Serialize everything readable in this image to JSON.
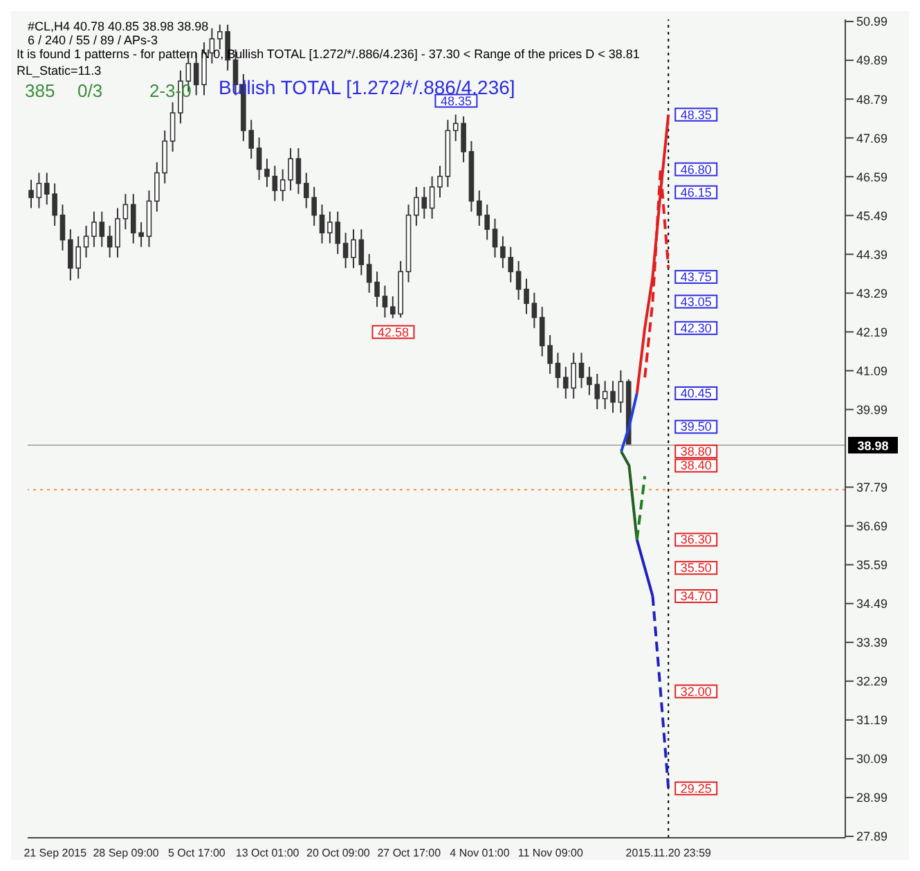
{
  "chart_data": {
    "type": "candlestick",
    "title": "#CL,H4  40.78 40.85 38.98 38.98",
    "subtitle": "6 / 240 / 55 / 89 / APs-3",
    "color": "#333333",
    "categories": [
      null,
      null,
      null,
      "21 Sep 2015",
      null,
      null,
      null,
      null,
      null,
      null,
      null,
      null,
      "28 Sep 09:00",
      null,
      null,
      null,
      null,
      null,
      null,
      null,
      null,
      "5 Oct 17:00",
      null,
      null,
      null,
      null,
      null,
      null,
      null,
      null,
      "13 Oct 01:00",
      null,
      null,
      null,
      null,
      null,
      null,
      null,
      null,
      "20 Oct 09:00",
      null,
      null,
      null,
      null,
      null,
      null,
      null,
      null,
      "27 Oct 17:00",
      null,
      null,
      null,
      null,
      null,
      null,
      null,
      null,
      "4 Nov 01:00",
      null,
      null,
      null,
      null,
      null,
      null,
      null,
      null,
      "11 Nov 09:00",
      null,
      null,
      null,
      null,
      null,
      null,
      null,
      null,
      null,
      null,
      null,
      null,
      null,
      null,
      "2015.11.20 23:59",
      null,
      null,
      null,
      null,
      null,
      null,
      null,
      null,
      null,
      null,
      null,
      null,
      null,
      null,
      null,
      null,
      null,
      null,
      null,
      null,
      null,
      null
    ],
    "ohlc": [
      [
        46.2,
        46.5,
        45.7,
        46.0
      ],
      [
        46.0,
        46.7,
        45.7,
        46.4
      ],
      [
        46.4,
        46.7,
        45.8,
        46.1
      ],
      [
        46.1,
        46.4,
        45.2,
        45.5
      ],
      [
        45.5,
        45.8,
        44.5,
        44.8
      ],
      [
        44.8,
        45.1,
        43.65,
        44.0
      ],
      [
        44.0,
        44.9,
        43.7,
        44.6
      ],
      [
        44.6,
        45.2,
        44.3,
        44.9
      ],
      [
        44.9,
        45.6,
        44.6,
        45.3
      ],
      [
        45.3,
        45.6,
        44.6,
        44.9
      ],
      [
        44.9,
        45.2,
        44.3,
        44.6
      ],
      [
        44.6,
        45.7,
        44.3,
        45.4
      ],
      [
        45.4,
        46.1,
        45.1,
        45.8
      ],
      [
        45.8,
        46.1,
        44.7,
        45.0
      ],
      [
        45.0,
        45.3,
        44.6,
        44.9
      ],
      [
        44.9,
        46.2,
        44.6,
        45.9
      ],
      [
        45.9,
        47.0,
        45.6,
        46.7
      ],
      [
        46.7,
        47.9,
        46.4,
        47.6
      ],
      [
        47.6,
        48.7,
        47.3,
        48.4
      ],
      [
        48.4,
        49.6,
        48.1,
        49.3
      ],
      [
        49.3,
        50.1,
        49.0,
        49.8
      ],
      [
        49.8,
        50.1,
        48.9,
        49.2
      ],
      [
        49.2,
        50.4,
        48.9,
        50.1
      ],
      [
        50.1,
        50.8,
        49.8,
        50.5
      ],
      [
        50.5,
        50.9,
        50.2,
        50.7
      ],
      [
        50.7,
        50.9,
        49.6,
        49.9
      ],
      [
        49.9,
        50.2,
        48.9,
        49.2
      ],
      [
        49.2,
        49.5,
        47.6,
        47.9
      ],
      [
        47.9,
        48.2,
        47.1,
        47.4
      ],
      [
        47.4,
        47.7,
        46.5,
        46.8
      ],
      [
        46.8,
        47.1,
        46.3,
        46.6
      ],
      [
        46.6,
        46.9,
        45.9,
        46.2
      ],
      [
        46.2,
        46.8,
        45.9,
        46.5
      ],
      [
        46.5,
        47.4,
        46.2,
        47.1
      ],
      [
        47.1,
        47.4,
        46.1,
        46.4
      ],
      [
        46.4,
        46.7,
        45.7,
        46.0
      ],
      [
        46.0,
        46.3,
        45.2,
        45.5
      ],
      [
        45.5,
        45.8,
        44.7,
        45.0
      ],
      [
        45.0,
        45.6,
        44.7,
        45.3
      ],
      [
        45.3,
        45.6,
        44.4,
        44.7
      ],
      [
        44.7,
        45.0,
        44.0,
        44.3
      ],
      [
        44.3,
        45.1,
        44.0,
        44.8
      ],
      [
        44.8,
        45.1,
        43.8,
        44.1
      ],
      [
        44.1,
        44.4,
        43.3,
        43.6
      ],
      [
        43.6,
        43.9,
        42.9,
        43.2
      ],
      [
        43.2,
        43.5,
        42.6,
        42.9
      ],
      [
        42.9,
        43.2,
        42.58,
        42.7
      ],
      [
        42.7,
        44.2,
        42.6,
        43.9
      ],
      [
        43.9,
        45.8,
        43.6,
        45.5
      ],
      [
        45.5,
        46.3,
        45.2,
        46.0
      ],
      [
        46.0,
        46.3,
        45.4,
        45.7
      ],
      [
        45.7,
        46.6,
        45.4,
        46.3
      ],
      [
        46.3,
        46.9,
        46.0,
        46.6
      ],
      [
        46.6,
        48.2,
        46.3,
        47.9
      ],
      [
        47.9,
        48.35,
        47.6,
        48.1
      ],
      [
        48.1,
        48.3,
        47.0,
        47.3
      ],
      [
        47.3,
        47.6,
        45.6,
        45.9
      ],
      [
        45.9,
        46.2,
        45.2,
        45.5
      ],
      [
        45.5,
        45.8,
        44.8,
        45.1
      ],
      [
        45.1,
        45.4,
        44.3,
        44.6
      ],
      [
        44.6,
        44.9,
        44.0,
        44.3
      ],
      [
        44.3,
        44.6,
        43.6,
        43.9
      ],
      [
        43.9,
        44.2,
        43.1,
        43.4
      ],
      [
        43.4,
        43.7,
        42.7,
        43.0
      ],
      [
        43.0,
        43.3,
        42.3,
        42.6
      ],
      [
        42.6,
        42.9,
        41.5,
        41.8
      ],
      [
        41.8,
        42.1,
        41.0,
        41.3
      ],
      [
        41.3,
        41.6,
        40.6,
        40.9
      ],
      [
        40.9,
        41.2,
        40.3,
        40.6
      ],
      [
        40.6,
        41.6,
        40.3,
        41.3
      ],
      [
        41.3,
        41.6,
        40.6,
        40.9
      ],
      [
        40.9,
        41.2,
        40.4,
        40.7
      ],
      [
        40.7,
        41.0,
        40.0,
        40.3
      ],
      [
        40.3,
        40.8,
        40.0,
        40.5
      ],
      [
        40.5,
        40.8,
        39.9,
        40.2
      ],
      [
        40.2,
        41.1,
        39.9,
        40.78
      ],
      [
        40.78,
        40.85,
        38.98,
        38.98
      ],
      null,
      null,
      null,
      null,
      null,
      null,
      null,
      null,
      null,
      null,
      null,
      null,
      null,
      null,
      null,
      null,
      null,
      null,
      null,
      null,
      null,
      null,
      null,
      null,
      null,
      null,
      null
    ],
    "series": [
      {
        "type": "line",
        "color": "#2040e0",
        "values": [
          null,
          null,
          null,
          null,
          null,
          null,
          null,
          null,
          null,
          null,
          null,
          null,
          null,
          null,
          null,
          null,
          null,
          null,
          null,
          null,
          null,
          null,
          null,
          null,
          null,
          null,
          null,
          null,
          null,
          null,
          null,
          null,
          null,
          null,
          null,
          null,
          null,
          null,
          null,
          null,
          null,
          null,
          null,
          null,
          null,
          null,
          null,
          null,
          null,
          null,
          null,
          null,
          null,
          null,
          null,
          null,
          null,
          null,
          null,
          null,
          null,
          null,
          null,
          null,
          null,
          null,
          null,
          null,
          null,
          null,
          null,
          null,
          null,
          null,
          null,
          38.8,
          39.5,
          40.45,
          null,
          null,
          null,
          null,
          null,
          null,
          null,
          null,
          null,
          null,
          null,
          null,
          null,
          null,
          null,
          null,
          null,
          null,
          null,
          null,
          null,
          null,
          null,
          null,
          null,
          null
        ]
      },
      {
        "type": "line",
        "color": "#e02020",
        "values": [
          null,
          null,
          null,
          null,
          null,
          null,
          null,
          null,
          null,
          null,
          null,
          null,
          null,
          null,
          null,
          null,
          null,
          null,
          null,
          null,
          null,
          null,
          null,
          null,
          null,
          null,
          null,
          null,
          null,
          null,
          null,
          null,
          null,
          null,
          null,
          null,
          null,
          null,
          null,
          null,
          null,
          null,
          null,
          null,
          null,
          null,
          null,
          null,
          null,
          null,
          null,
          null,
          null,
          null,
          null,
          null,
          null,
          null,
          null,
          null,
          null,
          null,
          null,
          null,
          null,
          null,
          null,
          null,
          null,
          null,
          null,
          null,
          null,
          null,
          null,
          null,
          null,
          40.45,
          42.3,
          43.75,
          46.15,
          48.35,
          null,
          null,
          null,
          null,
          null,
          null,
          null,
          null,
          null,
          null,
          null,
          null,
          null,
          null,
          null,
          null,
          null,
          null,
          null,
          null,
          null,
          null
        ]
      },
      {
        "type": "line",
        "color": "#e02020",
        "line_style": "dashed",
        "values": [
          null,
          null,
          null,
          null,
          null,
          null,
          null,
          null,
          null,
          null,
          null,
          null,
          null,
          null,
          null,
          null,
          null,
          null,
          null,
          null,
          null,
          null,
          null,
          null,
          null,
          null,
          null,
          null,
          null,
          null,
          null,
          null,
          null,
          null,
          null,
          null,
          null,
          null,
          null,
          null,
          null,
          null,
          null,
          null,
          null,
          null,
          null,
          null,
          null,
          null,
          null,
          null,
          null,
          null,
          null,
          null,
          null,
          null,
          null,
          null,
          null,
          null,
          null,
          null,
          null,
          null,
          null,
          null,
          null,
          null,
          null,
          null,
          null,
          null,
          null,
          null,
          null,
          null,
          40.9,
          43.05,
          46.8,
          44.0,
          null,
          null,
          null,
          null,
          null,
          null,
          null,
          null,
          null,
          null,
          null,
          null,
          null,
          null,
          null,
          null,
          null,
          null,
          null,
          null,
          null,
          null
        ]
      },
      {
        "type": "line",
        "color": "#206020",
        "values": [
          null,
          null,
          null,
          null,
          null,
          null,
          null,
          null,
          null,
          null,
          null,
          null,
          null,
          null,
          null,
          null,
          null,
          null,
          null,
          null,
          null,
          null,
          null,
          null,
          null,
          null,
          null,
          null,
          null,
          null,
          null,
          null,
          null,
          null,
          null,
          null,
          null,
          null,
          null,
          null,
          null,
          null,
          null,
          null,
          null,
          null,
          null,
          null,
          null,
          null,
          null,
          null,
          null,
          null,
          null,
          null,
          null,
          null,
          null,
          null,
          null,
          null,
          null,
          null,
          null,
          null,
          null,
          null,
          null,
          null,
          null,
          null,
          null,
          null,
          null,
          38.8,
          38.4,
          36.3,
          null,
          null,
          null,
          null,
          null,
          null,
          null,
          null,
          null,
          null,
          null,
          null,
          null,
          null,
          null,
          null,
          null,
          null,
          null,
          null,
          null,
          null,
          null,
          null,
          null,
          null
        ]
      },
      {
        "type": "line",
        "color": "#208020",
        "line_style": "dashed",
        "values": [
          null,
          null,
          null,
          null,
          null,
          null,
          null,
          null,
          null,
          null,
          null,
          null,
          null,
          null,
          null,
          null,
          null,
          null,
          null,
          null,
          null,
          null,
          null,
          null,
          null,
          null,
          null,
          null,
          null,
          null,
          null,
          null,
          null,
          null,
          null,
          null,
          null,
          null,
          null,
          null,
          null,
          null,
          null,
          null,
          null,
          null,
          null,
          null,
          null,
          null,
          null,
          null,
          null,
          null,
          null,
          null,
          null,
          null,
          null,
          null,
          null,
          null,
          null,
          null,
          null,
          null,
          null,
          null,
          null,
          null,
          null,
          null,
          null,
          null,
          null,
          null,
          null,
          36.3,
          38.1,
          null,
          null,
          null,
          null,
          null,
          null,
          null,
          null,
          null,
          null,
          null,
          null,
          null,
          null,
          null,
          null,
          null,
          null,
          null,
          null,
          null,
          null,
          null,
          null,
          null
        ]
      },
      {
        "type": "line",
        "color": "#2020c0",
        "values": [
          null,
          null,
          null,
          null,
          null,
          null,
          null,
          null,
          null,
          null,
          null,
          null,
          null,
          null,
          null,
          null,
          null,
          null,
          null,
          null,
          null,
          null,
          null,
          null,
          null,
          null,
          null,
          null,
          null,
          null,
          null,
          null,
          null,
          null,
          null,
          null,
          null,
          null,
          null,
          null,
          null,
          null,
          null,
          null,
          null,
          null,
          null,
          null,
          null,
          null,
          null,
          null,
          null,
          null,
          null,
          null,
          null,
          null,
          null,
          null,
          null,
          null,
          null,
          null,
          null,
          null,
          null,
          null,
          null,
          null,
          null,
          null,
          null,
          null,
          null,
          null,
          null,
          36.3,
          35.5,
          34.7,
          null,
          null,
          null,
          null,
          null,
          null,
          null,
          null,
          null,
          null,
          null,
          null,
          null,
          null,
          null,
          null,
          null,
          null,
          null,
          null,
          null,
          null,
          null,
          null
        ]
      },
      {
        "type": "line",
        "color": "#2020c0",
        "line_style": "dashed",
        "values": [
          null,
          null,
          null,
          null,
          null,
          null,
          null,
          null,
          null,
          null,
          null,
          null,
          null,
          null,
          null,
          null,
          null,
          null,
          null,
          null,
          null,
          null,
          null,
          null,
          null,
          null,
          null,
          null,
          null,
          null,
          null,
          null,
          null,
          null,
          null,
          null,
          null,
          null,
          null,
          null,
          null,
          null,
          null,
          null,
          null,
          null,
          null,
          null,
          null,
          null,
          null,
          null,
          null,
          null,
          null,
          null,
          null,
          null,
          null,
          null,
          null,
          null,
          null,
          null,
          null,
          null,
          null,
          null,
          null,
          null,
          null,
          null,
          null,
          null,
          null,
          null,
          null,
          null,
          null,
          34.7,
          32.0,
          29.25,
          null,
          null,
          null,
          null,
          null,
          null,
          null,
          null,
          null,
          null,
          null,
          null,
          null,
          null,
          null,
          null,
          null,
          null,
          null,
          null,
          null,
          null
        ]
      }
    ],
    "ylim": [
      27.85,
      51.05
    ],
    "yticks": [
      27.89,
      28.99,
      30.09,
      31.19,
      32.29,
      33.39,
      34.49,
      35.59,
      36.69,
      37.79,
      39.99,
      41.09,
      42.19,
      43.29,
      44.39,
      45.49,
      46.59,
      47.69,
      48.79,
      49.89,
      50.99
    ],
    "ref_lines": [
      {
        "axis": "x",
        "value": "2015.11.20 23:59",
        "color": "#000000",
        "line_style": "dotted"
      },
      {
        "axis": "y",
        "value": 38.98,
        "label": "38.98",
        "color": "#b0b0b0",
        "line_style": "solid"
      },
      {
        "axis": "y",
        "value": 37.72,
        "color": "#ff8c40",
        "line_style": "dotted"
      }
    ],
    "annotations": [
      "It is found 1 patterns  -  for pattern N 0, Bullish TOTAL [1.272/*/.886/4.236] - 37.30 < Range of the prices D < 38.81",
      "RL_Static=11.3",
      "385",
      "0/3",
      "2-3-0",
      "Bullish TOTAL [1.272/*/.886/4.236]",
      {
        "text": "42.58",
        "y": 42.58
      },
      {
        "text": "48.35",
        "y": 48.35
      },
      {
        "text": "48.35",
        "y": 48.35
      },
      {
        "text": "46.80",
        "y": 46.8
      },
      {
        "text": "46.15",
        "y": 46.15
      },
      {
        "text": "43.75",
        "y": 43.75
      },
      {
        "text": "43.05",
        "y": 43.05
      },
      {
        "text": "42.30",
        "y": 42.3
      },
      {
        "text": "40.45",
        "y": 40.45
      },
      {
        "text": "39.50",
        "y": 39.5
      },
      {
        "text": "38.80",
        "y": 38.8
      },
      {
        "text": "38.40",
        "y": 38.4
      },
      {
        "text": "36.30",
        "y": 36.3
      },
      {
        "text": "35.50",
        "y": 35.5
      },
      {
        "text": "34.70",
        "y": 34.7
      },
      {
        "text": "32.00",
        "y": 32.0
      },
      {
        "text": "29.25",
        "y": 29.25
      }
    ]
  }
}
